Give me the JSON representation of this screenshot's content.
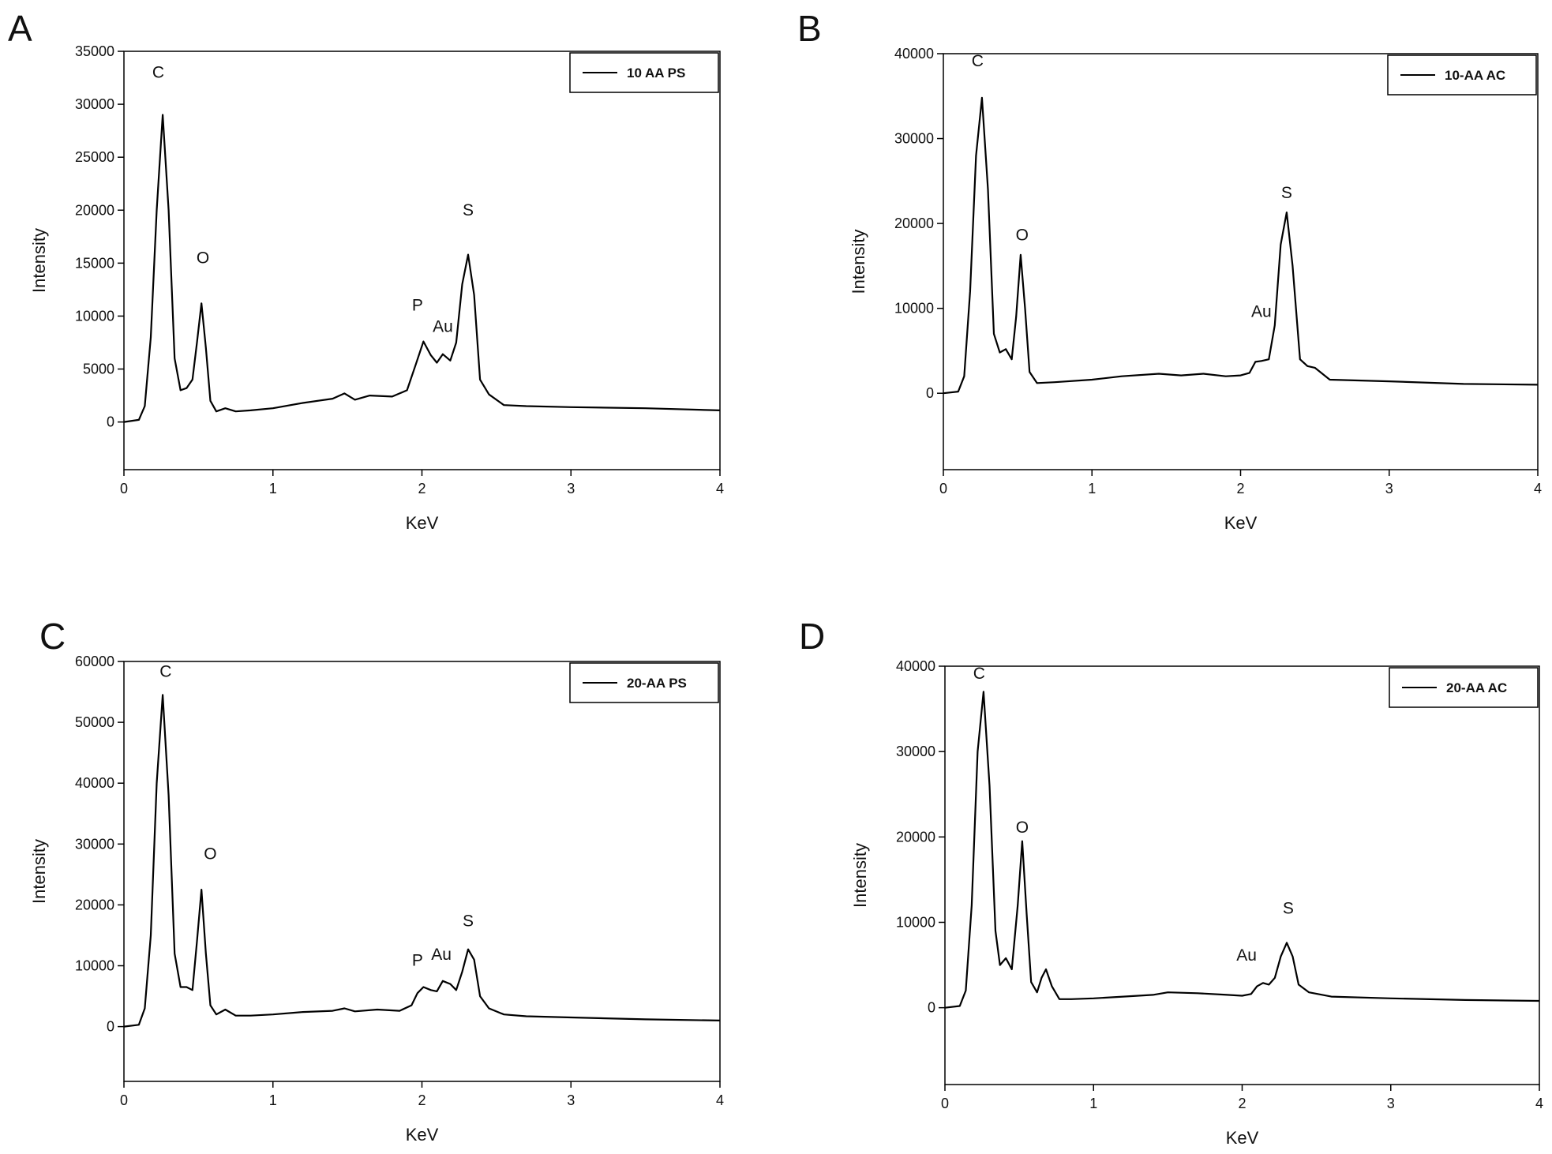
{
  "chart_data": [
    {
      "panel": "A",
      "type": "line",
      "xlabel": "KeV",
      "ylabel": "Intensity",
      "xlim": [
        0,
        4
      ],
      "ylim": [
        -4500,
        35000
      ],
      "xticks": [
        0,
        1,
        2,
        3,
        4
      ],
      "yticks": [
        0,
        5000,
        10000,
        15000,
        20000,
        25000,
        30000,
        35000
      ],
      "legend_position": "top-right",
      "series": [
        {
          "name": "10 AA PS",
          "x": [
            0,
            0.1,
            0.14,
            0.18,
            0.22,
            0.26,
            0.3,
            0.34,
            0.38,
            0.42,
            0.46,
            0.49,
            0.52,
            0.55,
            0.58,
            0.62,
            0.68,
            0.75,
            0.85,
            1.0,
            1.2,
            1.4,
            1.48,
            1.55,
            1.65,
            1.8,
            1.9,
            1.96,
            2.01,
            2.06,
            2.1,
            2.14,
            2.19,
            2.23,
            2.27,
            2.31,
            2.35,
            2.39,
            2.45,
            2.55,
            2.7,
            3.0,
            3.5,
            4.0
          ],
          "y": [
            0,
            200,
            1500,
            8000,
            20000,
            29000,
            20000,
            6000,
            3000,
            3200,
            4000,
            7500,
            11200,
            7000,
            2000,
            1000,
            1300,
            1000,
            1100,
            1300,
            1800,
            2200,
            2700,
            2100,
            2500,
            2400,
            3000,
            5500,
            7600,
            6300,
            5600,
            6400,
            5800,
            7500,
            13000,
            15800,
            12000,
            4000,
            2600,
            1600,
            1500,
            1400,
            1300,
            1100
          ]
        }
      ],
      "annotations": [
        {
          "text": "C",
          "x": 0.23,
          "y": 32500
        },
        {
          "text": "O",
          "x": 0.53,
          "y": 15000
        },
        {
          "text": "P",
          "x": 1.97,
          "y": 10500
        },
        {
          "text": "Au",
          "x": 2.14,
          "y": 8500
        },
        {
          "text": "S",
          "x": 2.31,
          "y": 19500
        }
      ]
    },
    {
      "panel": "B",
      "type": "line",
      "xlabel": "KeV",
      "ylabel": "Intensity",
      "xlim": [
        0,
        4
      ],
      "ylim": [
        -9000,
        40000
      ],
      "xticks": [
        0,
        1,
        2,
        3,
        4
      ],
      "yticks": [
        0,
        10000,
        20000,
        30000,
        40000
      ],
      "legend_position": "top-right",
      "series": [
        {
          "name": "10-AA AC",
          "x": [
            0,
            0.1,
            0.14,
            0.18,
            0.22,
            0.26,
            0.3,
            0.34,
            0.38,
            0.42,
            0.46,
            0.49,
            0.52,
            0.55,
            0.58,
            0.63,
            0.75,
            1.0,
            1.2,
            1.45,
            1.6,
            1.75,
            1.9,
            2.0,
            2.06,
            2.1,
            2.14,
            2.19,
            2.23,
            2.27,
            2.31,
            2.35,
            2.4,
            2.45,
            2.5,
            2.6,
            3.0,
            3.5,
            4.0
          ],
          "y": [
            0,
            200,
            2000,
            12000,
            28000,
            34800,
            24000,
            7000,
            4800,
            5200,
            4000,
            9000,
            16300,
            10000,
            2500,
            1200,
            1300,
            1600,
            2000,
            2300,
            2100,
            2300,
            2000,
            2100,
            2400,
            3700,
            3800,
            4000,
            8000,
            17500,
            21300,
            15000,
            4000,
            3200,
            3000,
            1600,
            1400,
            1100,
            1000
          ]
        }
      ],
      "annotations": [
        {
          "text": "C",
          "x": 0.23,
          "y": 38500
        },
        {
          "text": "O",
          "x": 0.53,
          "y": 18000
        },
        {
          "text": "Au",
          "x": 2.14,
          "y": 9000
        },
        {
          "text": "S",
          "x": 2.31,
          "y": 23000
        }
      ]
    },
    {
      "panel": "C",
      "type": "line",
      "xlabel": "KeV",
      "ylabel": "Intensity",
      "xlim": [
        0,
        4
      ],
      "ylim": [
        -9000,
        60000
      ],
      "xticks": [
        0,
        1,
        2,
        3,
        4
      ],
      "yticks": [
        0,
        10000,
        20000,
        30000,
        40000,
        50000,
        60000
      ],
      "legend_position": "top-right",
      "series": [
        {
          "name": "20-AA PS",
          "x": [
            0,
            0.1,
            0.14,
            0.18,
            0.22,
            0.26,
            0.3,
            0.34,
            0.38,
            0.42,
            0.46,
            0.49,
            0.52,
            0.55,
            0.58,
            0.62,
            0.68,
            0.75,
            0.85,
            1.0,
            1.2,
            1.4,
            1.48,
            1.55,
            1.7,
            1.85,
            1.93,
            1.97,
            2.01,
            2.06,
            2.1,
            2.14,
            2.19,
            2.23,
            2.27,
            2.31,
            2.35,
            2.39,
            2.45,
            2.55,
            2.7,
            3.0,
            3.5,
            4.0
          ],
          "y": [
            0,
            300,
            3000,
            15000,
            40000,
            54500,
            38000,
            12000,
            6500,
            6500,
            6000,
            14000,
            22500,
            12000,
            3500,
            2000,
            2800,
            1800,
            1800,
            2000,
            2400,
            2600,
            3000,
            2500,
            2800,
            2600,
            3500,
            5500,
            6500,
            6000,
            5800,
            7500,
            7000,
            6000,
            9000,
            12700,
            11000,
            5000,
            3000,
            2000,
            1700,
            1500,
            1200,
            1000
          ]
        }
      ],
      "annotations": [
        {
          "text": "C",
          "x": 0.28,
          "y": 57500
        },
        {
          "text": "O",
          "x": 0.58,
          "y": 27500
        },
        {
          "text": "P",
          "x": 1.97,
          "y": 10000
        },
        {
          "text": "Au",
          "x": 2.13,
          "y": 11000
        },
        {
          "text": "S",
          "x": 2.31,
          "y": 16500
        }
      ]
    },
    {
      "panel": "D",
      "type": "line",
      "xlabel": "KeV",
      "ylabel": "Intensity",
      "xlim": [
        0,
        4
      ],
      "ylim": [
        -9000,
        40000
      ],
      "xticks": [
        0,
        1,
        2,
        3,
        4
      ],
      "yticks": [
        0,
        10000,
        20000,
        30000,
        40000
      ],
      "legend_position": "top-right",
      "series": [
        {
          "name": "20-AA AC",
          "x": [
            0,
            0.1,
            0.14,
            0.18,
            0.22,
            0.26,
            0.3,
            0.34,
            0.37,
            0.41,
            0.45,
            0.49,
            0.52,
            0.55,
            0.58,
            0.62,
            0.65,
            0.68,
            0.72,
            0.77,
            0.85,
            1.0,
            1.2,
            1.4,
            1.5,
            1.7,
            1.9,
            2.0,
            2.06,
            2.1,
            2.14,
            2.18,
            2.22,
            2.26,
            2.3,
            2.34,
            2.38,
            2.45,
            2.6,
            3.0,
            3.5,
            4.0
          ],
          "y": [
            0,
            200,
            2000,
            12000,
            30000,
            37000,
            26000,
            9000,
            5000,
            5800,
            4500,
            12000,
            19500,
            11000,
            3000,
            1800,
            3500,
            4500,
            2500,
            1000,
            1000,
            1100,
            1300,
            1500,
            1800,
            1700,
            1500,
            1400,
            1600,
            2500,
            2900,
            2700,
            3500,
            6000,
            7600,
            6000,
            2700,
            1800,
            1300,
            1100,
            900,
            800
          ]
        }
      ],
      "annotations": [
        {
          "text": "C",
          "x": 0.23,
          "y": 38500
        },
        {
          "text": "O",
          "x": 0.52,
          "y": 20500
        },
        {
          "text": "Au",
          "x": 2.03,
          "y": 5500
        },
        {
          "text": "S",
          "x": 2.31,
          "y": 11000
        }
      ]
    }
  ]
}
